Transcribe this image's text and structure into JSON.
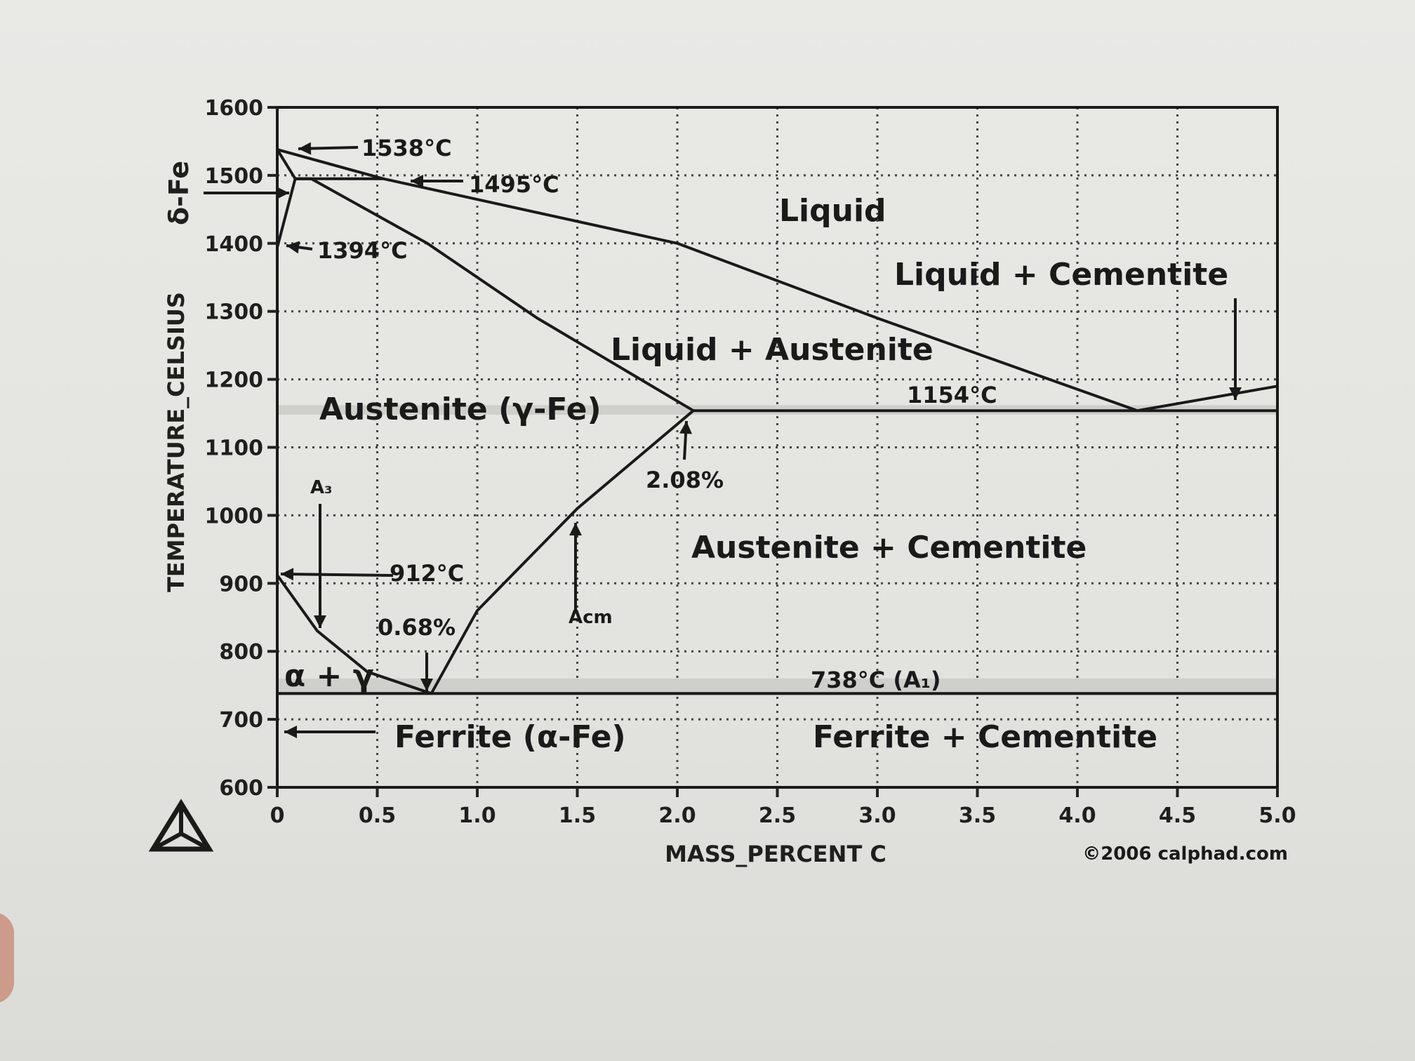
{
  "chart_data": {
    "type": "line",
    "title": "",
    "xlabel": "MASS_PERCENT C",
    "ylabel": "TEMPERATURE_CELSIUS",
    "xlim": [
      0,
      5.0
    ],
    "ylim": [
      600,
      1600
    ],
    "x_ticks": [
      "0",
      "0.5",
      "1.0",
      "1.5",
      "2.0",
      "2.5",
      "3.0",
      "3.5",
      "4.0",
      "4.5",
      "5.0"
    ],
    "y_ticks": [
      "600",
      "700",
      "800",
      "900",
      "1000",
      "1100",
      "1200",
      "1300",
      "1400",
      "1500",
      "1600"
    ],
    "grid": true,
    "series": [
      {
        "points": [
          [
            0,
            1538
          ],
          [
            0.53,
            1495
          ],
          [
            2.0,
            1400
          ],
          [
            3.0,
            1290
          ],
          [
            4.3,
            1154
          ]
        ]
      },
      {
        "points": [
          [
            4.3,
            1154
          ],
          [
            5.0,
            1190
          ]
        ]
      },
      {
        "points": [
          [
            0.17,
            1495
          ],
          [
            0.75,
            1400
          ],
          [
            1.3,
            1290
          ],
          [
            2.08,
            1154
          ]
        ]
      },
      {
        "points": [
          [
            0.09,
            1495
          ],
          [
            0.53,
            1495
          ]
        ]
      },
      {
        "points": [
          [
            0,
            1538
          ],
          [
            0.09,
            1495
          ],
          [
            0.17,
            1495
          ]
        ]
      },
      {
        "points": [
          [
            0,
            1394
          ],
          [
            0.09,
            1495
          ],
          [
            0.17,
            1495
          ]
        ]
      },
      {
        "points": [
          [
            2.08,
            1154
          ],
          [
            5.0,
            1154
          ]
        ]
      },
      {
        "points": [
          [
            2.08,
            1154
          ],
          [
            1.5,
            1010
          ],
          [
            1.0,
            860
          ],
          [
            0.77,
            738
          ]
        ]
      },
      {
        "points": [
          [
            0,
            912
          ],
          [
            0.2,
            830
          ],
          [
            0.45,
            770
          ],
          [
            0.77,
            738
          ]
        ]
      },
      {
        "points": [
          [
            0,
            738
          ],
          [
            5.0,
            738
          ]
        ]
      }
    ],
    "regions": {
      "liquid": "Liquid",
      "liquid_cementite": "Liquid + Cementite",
      "liquid_austenite": "Liquid + Austenite",
      "austenite": "Austenite (γ-Fe)",
      "austenite_cementite": "Austenite + Cementite",
      "alpha_gamma": "α + γ",
      "ferrite": "Ferrite (α-Fe)",
      "ferrite_cementite": "Ferrite + Cementite"
    },
    "annotations": {
      "t1538": "1538°C",
      "t1495": "1495°C",
      "t1394": "1394°C",
      "t1154": "1154°C",
      "t912": "912°C",
      "t738": "738°C (A₁)",
      "p208": "2.08%",
      "p068": "0.68%",
      "a3": "A₃",
      "acm": "Acm",
      "delta_fe": "δ-Fe"
    },
    "copyright": "©2006 calphad.com"
  }
}
